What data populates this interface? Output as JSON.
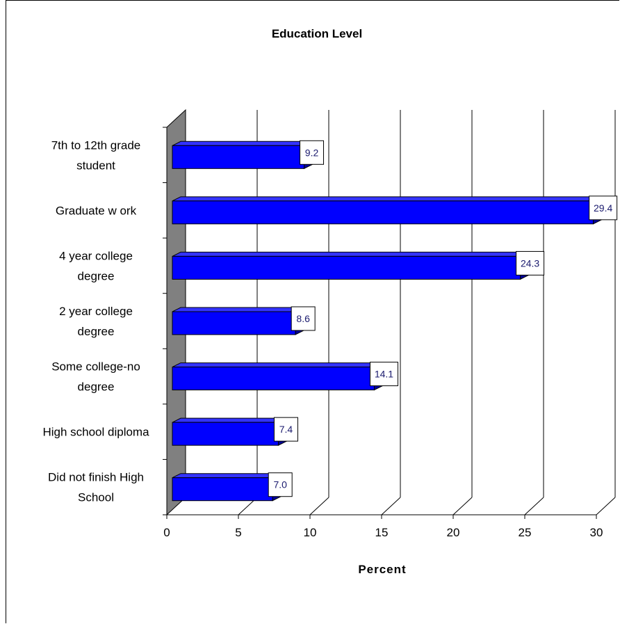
{
  "chart_data": {
    "type": "bar",
    "orientation": "horizontal",
    "title": "Education Level",
    "xlabel": "Percent",
    "ylabel": "",
    "xlim": [
      0,
      30
    ],
    "ticks": [
      "0",
      "5",
      "10",
      "15",
      "20",
      "25",
      "30"
    ],
    "grid": true,
    "legend": "none",
    "colors": {
      "bar": "#0000ff",
      "bar_top": "#3333ff",
      "bar_side": "#000099",
      "wall": "#808080"
    },
    "categories": [
      {
        "lines": [
          "7th to 12th grade",
          "student"
        ],
        "value": 9.2,
        "label": "9.2"
      },
      {
        "lines": [
          "Graduate w ork"
        ],
        "value": 29.4,
        "label": "29.4"
      },
      {
        "lines": [
          "4 year college",
          "degree"
        ],
        "value": 24.3,
        "label": "24.3"
      },
      {
        "lines": [
          "2 year college",
          "degree"
        ],
        "value": 8.6,
        "label": "8.6"
      },
      {
        "lines": [
          "Some college-no",
          "degree"
        ],
        "value": 14.1,
        "label": "14.1"
      },
      {
        "lines": [
          "High school diploma"
        ],
        "value": 7.4,
        "label": "7.4"
      },
      {
        "lines": [
          "Did not finish High",
          "School"
        ],
        "value": 7.0,
        "label": "7.0"
      }
    ]
  }
}
